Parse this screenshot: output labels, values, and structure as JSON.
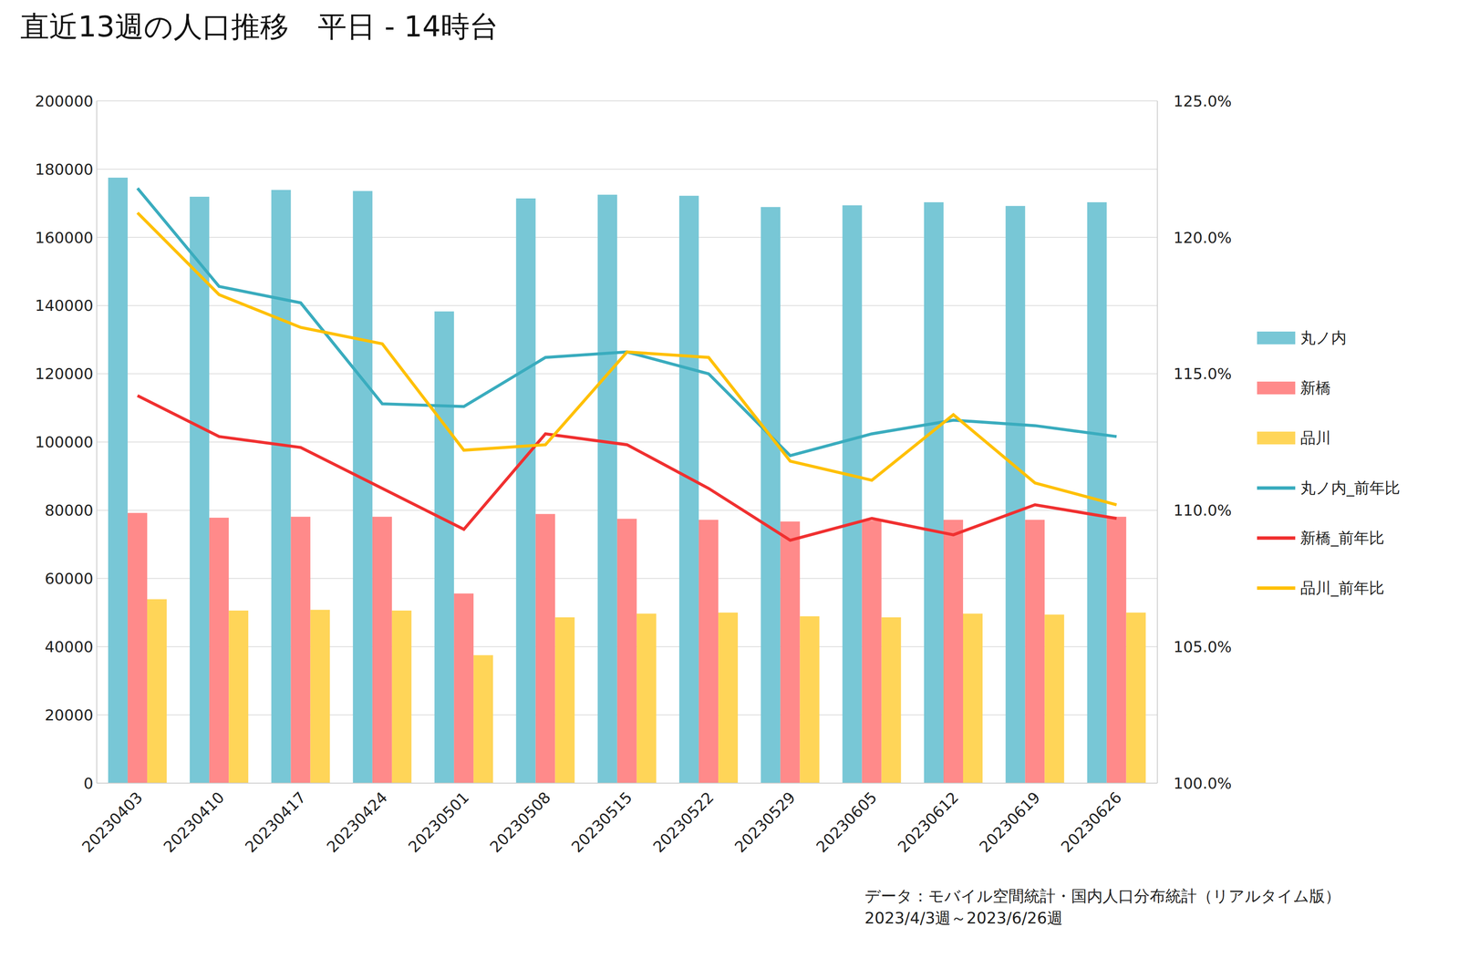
{
  "chart_data": {
    "type": "bar",
    "title": "直近13週の人口推移　平日 - 14時台",
    "annotations": [
      "データ：モバイル空間統計・国内人口分布統計（リアルタイム版）",
      "2023/4/3週～2023/6/26週"
    ],
    "categories": [
      "20230403",
      "20230410",
      "20230417",
      "20230424",
      "20230501",
      "20230508",
      "20230515",
      "20230522",
      "20230529",
      "20230605",
      "20230612",
      "20230619",
      "20230626"
    ],
    "series": [
      {
        "name": "丸ノ内",
        "type": "bar",
        "color": "#78C7D6",
        "values": [
          177500,
          171900,
          173900,
          173600,
          138300,
          171400,
          172500,
          172200,
          168900,
          169400,
          170300,
          169200,
          170300
        ]
      },
      {
        "name": "新橋",
        "type": "bar",
        "color": "#FF8A8A",
        "values": [
          79200,
          77800,
          78100,
          78100,
          55600,
          78900,
          77500,
          77200,
          76700,
          77000,
          77200,
          77200,
          78100
        ]
      },
      {
        "name": "品川",
        "type": "bar",
        "color": "#FFD558",
        "values": [
          53900,
          50600,
          50800,
          50600,
          37500,
          48600,
          49700,
          50000,
          48900,
          48600,
          49700,
          49400,
          50000
        ]
      },
      {
        "name": "丸ノ内_前年比",
        "type": "line",
        "axis": "y2",
        "color": "#3AACBE",
        "values": [
          121.8,
          118.2,
          117.6,
          113.9,
          113.8,
          115.6,
          115.8,
          115.0,
          112.0,
          112.8,
          113.3,
          113.1,
          112.7
        ]
      },
      {
        "name": "新橋_前年比",
        "type": "line",
        "axis": "y2",
        "color": "#F03030",
        "values": [
          114.2,
          112.7,
          112.3,
          110.8,
          109.3,
          112.8,
          112.4,
          110.8,
          108.9,
          109.7,
          109.1,
          110.2,
          109.7
        ]
      },
      {
        "name": "品川_前年比",
        "type": "line",
        "axis": "y2",
        "color": "#FFC000",
        "values": [
          120.9,
          117.9,
          116.7,
          116.1,
          112.2,
          112.4,
          115.8,
          115.6,
          111.8,
          111.1,
          113.5,
          111.0,
          110.2
        ]
      }
    ],
    "ylim": [
      0,
      200000
    ],
    "yticks": [
      0,
      20000,
      40000,
      60000,
      80000,
      100000,
      120000,
      140000,
      160000,
      180000,
      200000
    ],
    "y2lim": [
      100,
      125
    ],
    "y2ticks": [
      {
        "value": 100,
        "label": "100.0%"
      },
      {
        "value": 105,
        "label": "105.0%"
      },
      {
        "value": 110,
        "label": "110.0%"
      },
      {
        "value": 115,
        "label": "115.0%"
      },
      {
        "value": 120,
        "label": "120.0%"
      },
      {
        "value": 125,
        "label": "125.0%"
      }
    ],
    "grid": true,
    "legend": "right"
  }
}
